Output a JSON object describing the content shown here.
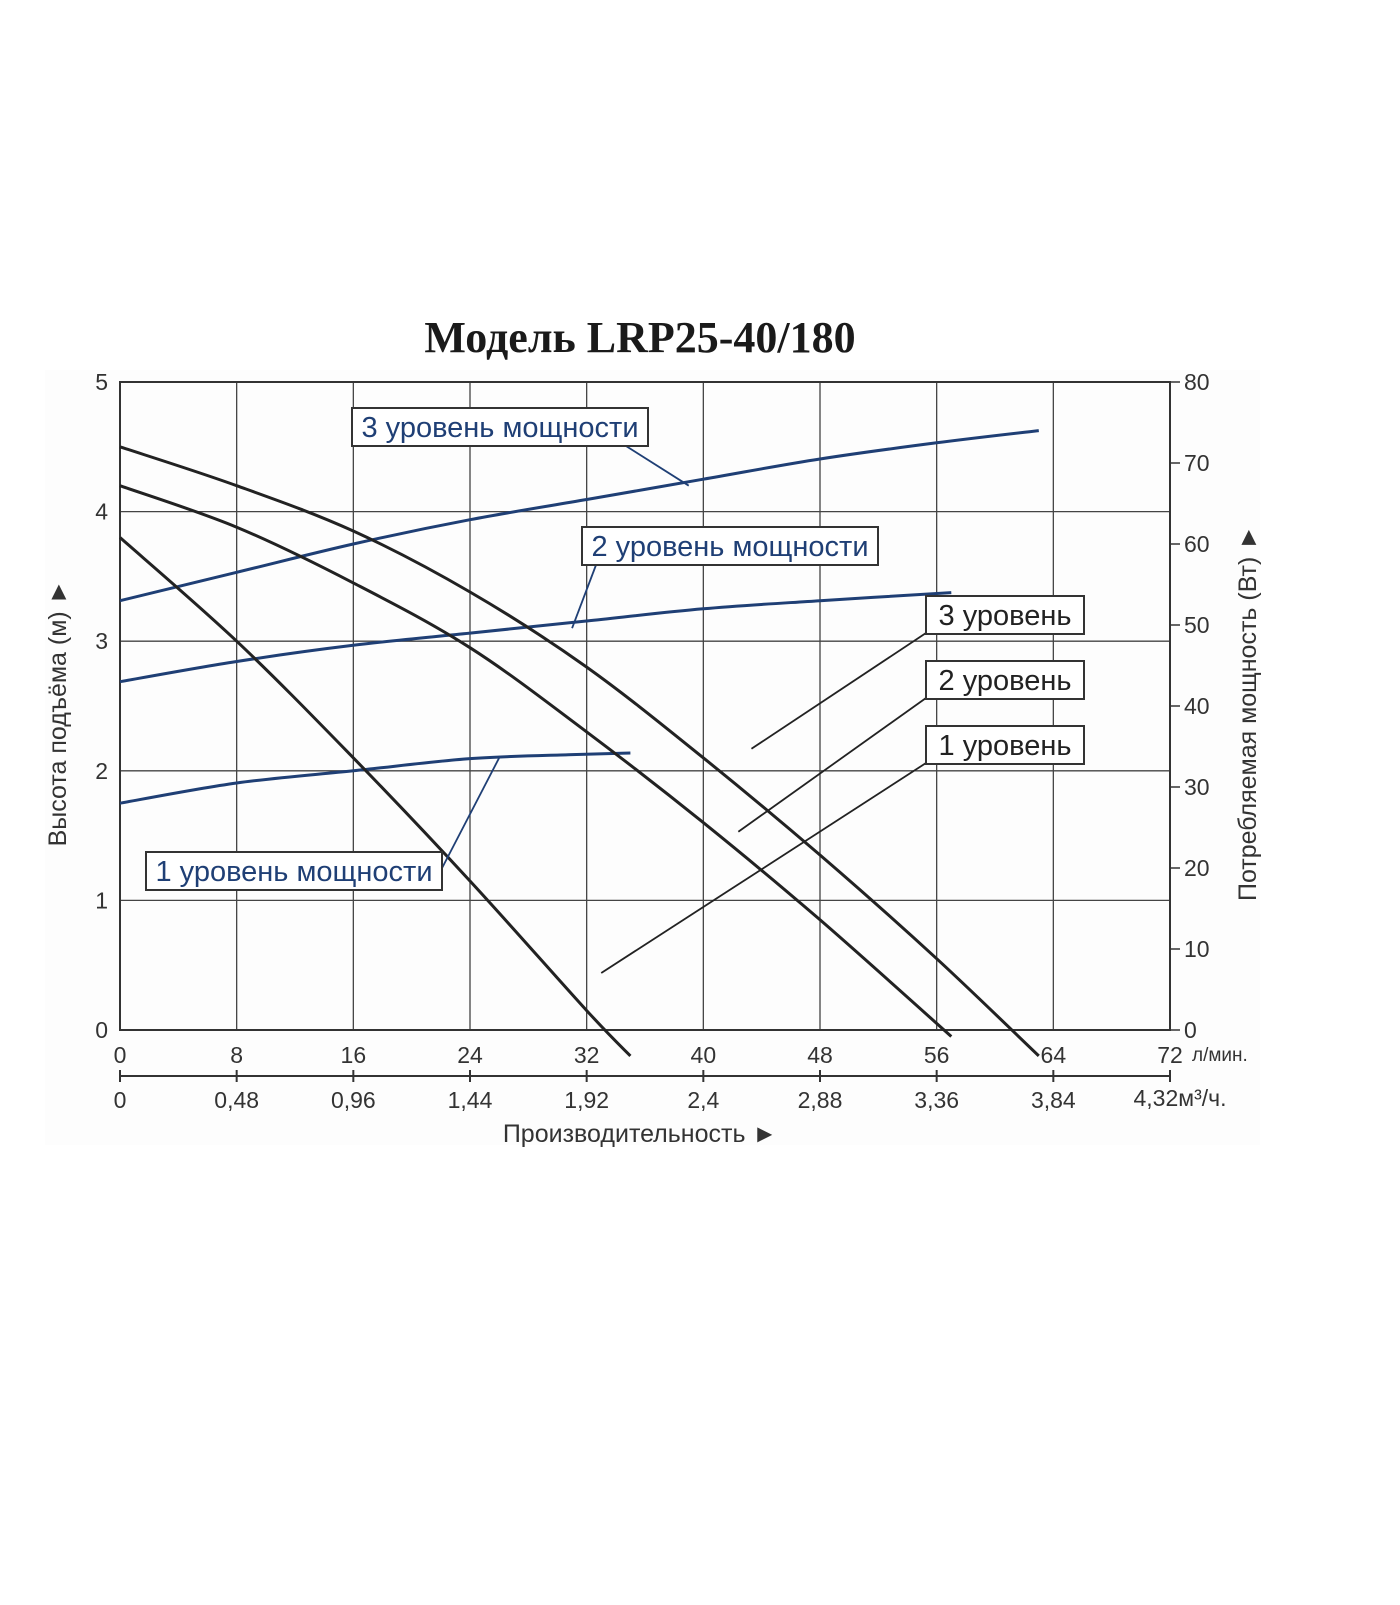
{
  "chart_data": {
    "type": "line",
    "title": "Модель LRP25-40/180",
    "xlabel": "Производительность ►",
    "ylabel": "Высота подъёма (м) ►",
    "y2label": "Потребляемая мощность (Вт) ►",
    "x_unit_primary": "л/мин.",
    "x_unit_secondary": "4,32м³/ч.",
    "xlim": [
      0,
      72
    ],
    "ylim": [
      0,
      5
    ],
    "y2lim": [
      0,
      80
    ],
    "x_ticks": [
      "0",
      "8",
      "16",
      "24",
      "32",
      "40",
      "48",
      "56",
      "64",
      "72"
    ],
    "x_ticks_secondary": [
      "0",
      "0,48",
      "0,96",
      "1,44",
      "1,92",
      "2,4",
      "2,88",
      "3,36",
      "3,84"
    ],
    "y_ticks": [
      "0",
      "1",
      "2",
      "3",
      "4",
      "5"
    ],
    "y2_ticks": [
      "0",
      "10",
      "20",
      "30",
      "40",
      "50",
      "60",
      "70",
      "80"
    ],
    "grid": true,
    "colors": {
      "head": "#222222",
      "power": "#1f3f75",
      "grid": "#444444",
      "label_power": "#1f3f75",
      "label_head": "#222222"
    },
    "head_curves": [
      {
        "name": "3 уровень",
        "axis": "left",
        "x": [
          0,
          8,
          16,
          24,
          32,
          40,
          48,
          56,
          63
        ],
        "y": [
          4.5,
          4.2,
          3.85,
          3.38,
          2.8,
          2.1,
          1.35,
          0.55,
          -0.2
        ]
      },
      {
        "name": "2 уровень",
        "axis": "left",
        "x": [
          0,
          8,
          16,
          24,
          32,
          40,
          48,
          57
        ],
        "y": [
          4.2,
          3.88,
          3.45,
          2.95,
          2.3,
          1.6,
          0.85,
          -0.05
        ]
      },
      {
        "name": "1 уровень",
        "axis": "left",
        "x": [
          0,
          8,
          16,
          24,
          32,
          35
        ],
        "y": [
          3.8,
          3.0,
          2.1,
          1.15,
          0.15,
          -0.2
        ]
      }
    ],
    "power_curves": [
      {
        "name": "3 уровень мощности",
        "axis": "right",
        "x": [
          0,
          8,
          16,
          24,
          32,
          40,
          48,
          56,
          63
        ],
        "y": [
          53,
          56.5,
          60,
          63,
          65.5,
          68,
          70.5,
          72.5,
          74
        ]
      },
      {
        "name": "2 уровень мощности",
        "axis": "right",
        "x": [
          0,
          8,
          16,
          24,
          32,
          40,
          48,
          57
        ],
        "y": [
          43,
          45.5,
          47.5,
          49,
          50.5,
          52,
          53,
          54
        ]
      },
      {
        "name": "1 уровень мощности",
        "axis": "right",
        "x": [
          0,
          8,
          16,
          24,
          31,
          35
        ],
        "y": [
          28,
          30.5,
          32,
          33.5,
          34,
          34.2
        ]
      }
    ]
  }
}
